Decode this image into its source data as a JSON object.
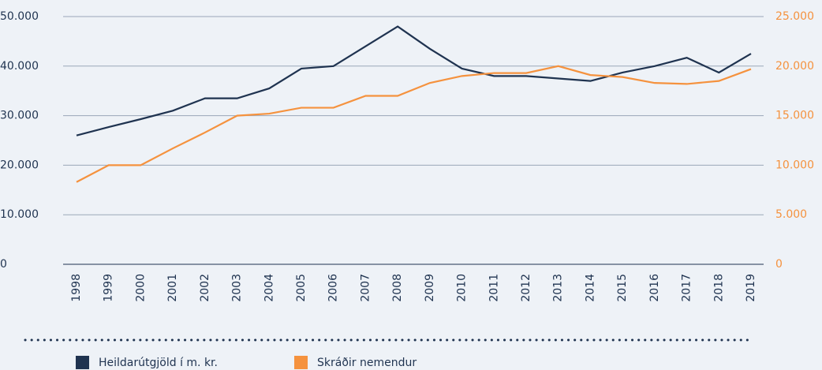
{
  "chart_data": {
    "type": "line",
    "categories": [
      "1998",
      "1999",
      "2000",
      "2001",
      "2002",
      "2003",
      "2004",
      "2005",
      "2006",
      "2007",
      "2008",
      "2009",
      "2010",
      "2011",
      "2012",
      "2013",
      "2014",
      "2015",
      "2016",
      "2017",
      "2018",
      "2019"
    ],
    "series": [
      {
        "name": "Heildarútgjöld í m. kr.",
        "color": "#1f3350",
        "axis": "y",
        "values": [
          26000,
          27700,
          29300,
          31000,
          33500,
          33500,
          35500,
          39500,
          40000,
          44000,
          48000,
          43500,
          39500,
          38000,
          38000,
          37500,
          37000,
          38700,
          40000,
          41700,
          38700,
          42500
        ]
      },
      {
        "name": "Skráðir nemendur",
        "color": "#f5923e",
        "axis": "y2",
        "values": [
          8300,
          10000,
          10000,
          11700,
          13300,
          15000,
          15200,
          15800,
          15800,
          17000,
          17000,
          18300,
          19000,
          19300,
          19300,
          20000,
          19100,
          18900,
          18300,
          18200,
          18500,
          19700
        ]
      }
    ],
    "ylim": [
      0,
      50000
    ],
    "yticks": [
      0,
      {
        "value": 10000,
        "label": "10.000"
      },
      {
        "value": 20000,
        "label": "20.000"
      },
      {
        "value": 30000,
        "label": "30.000"
      },
      {
        "value": 40000,
        "label": "40.000"
      },
      {
        "value": 50000,
        "label": "50.000"
      }
    ],
    "y2lim": [
      0,
      25000
    ],
    "y2ticks": [
      0,
      {
        "value": 5000,
        "label": "5.000"
      },
      {
        "value": 10000,
        "label": "10.000"
      },
      {
        "value": 15000,
        "label": "15.000"
      },
      {
        "value": 20000,
        "label": "20.000"
      },
      {
        "value": 25000,
        "label": "25.000"
      }
    ],
    "grid": true,
    "legend": "bottom"
  }
}
